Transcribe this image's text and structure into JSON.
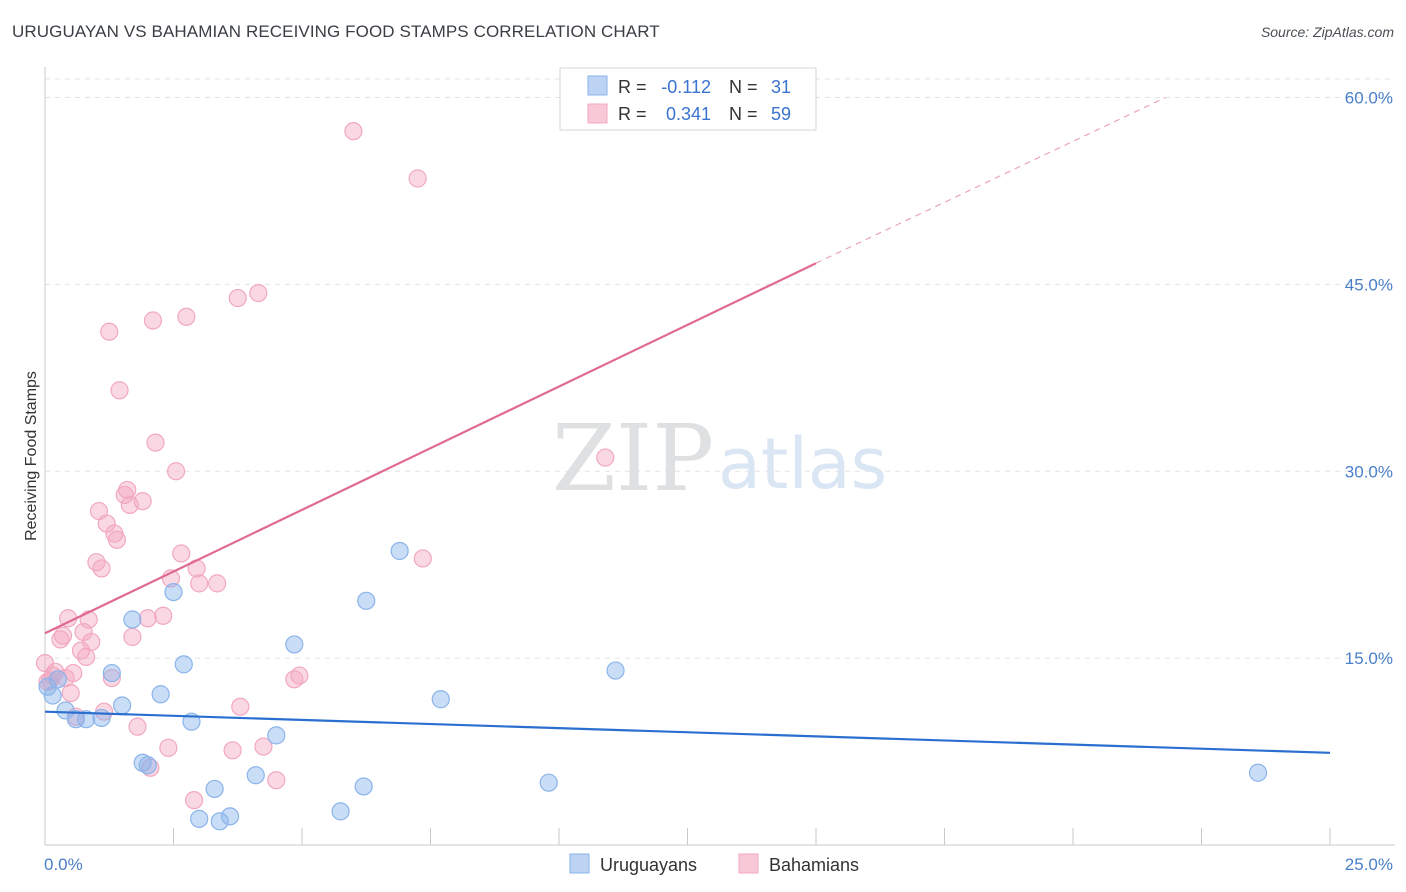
{
  "title": "URUGUAYAN VS BAHAMIAN RECEIVING FOOD STAMPS CORRELATION CHART",
  "source": "Source: ZipAtlas.com",
  "watermark": {
    "zip": "ZIP",
    "atlas": "atlas"
  },
  "legend": {
    "series": [
      {
        "r_label": "R =",
        "r_value": "-0.112",
        "n_label": "N =",
        "n_value": "31"
      },
      {
        "r_label": "R =",
        "r_value": "0.341",
        "n_label": "N =",
        "n_value": "59"
      }
    ]
  },
  "bottom_legend": [
    "Uruguayans",
    "Bahamians"
  ],
  "chart_data": {
    "type": "scatter",
    "title": "URUGUAYAN VS BAHAMIAN RECEIVING FOOD STAMPS CORRELATION CHART",
    "xlabel": "",
    "ylabel": "Receiving Food Stamps",
    "xlim": [
      0,
      25
    ],
    "ylim": [
      0,
      62
    ],
    "x_tick_labels": [
      "0.0%",
      "25.0%"
    ],
    "y_ticks": [
      15,
      30,
      45,
      60
    ],
    "y_tick_labels": [
      "15.0%",
      "30.0%",
      "45.0%",
      "60.0%"
    ],
    "colors": {
      "uruguayans": "#8ab4ea",
      "bahamians": "#f2a8c0",
      "uru_line": "#2a6fd0",
      "bah_line": "#e06a93"
    },
    "series": [
      {
        "name": "Uruguayans",
        "r": -0.112,
        "n": 31,
        "trend": {
          "x0": 0,
          "y0": 10.7,
          "x1": 25,
          "y1": 7.4
        },
        "points": [
          [
            0.05,
            12.7
          ],
          [
            0.15,
            12.0
          ],
          [
            0.25,
            13.3
          ],
          [
            0.4,
            10.8
          ],
          [
            0.6,
            10.1
          ],
          [
            0.8,
            10.1
          ],
          [
            1.1,
            10.2
          ],
          [
            1.3,
            13.8
          ],
          [
            1.5,
            11.2
          ],
          [
            1.7,
            18.1
          ],
          [
            1.9,
            6.6
          ],
          [
            2.0,
            6.4
          ],
          [
            2.25,
            12.1
          ],
          [
            2.5,
            20.3
          ],
          [
            2.7,
            14.5
          ],
          [
            2.85,
            9.9
          ],
          [
            3.0,
            2.1
          ],
          [
            3.3,
            4.5
          ],
          [
            3.4,
            1.9
          ],
          [
            3.6,
            2.3
          ],
          [
            4.1,
            5.6
          ],
          [
            4.5,
            8.8
          ],
          [
            4.85,
            16.1
          ],
          [
            5.75,
            2.7
          ],
          [
            6.2,
            4.7
          ],
          [
            6.25,
            19.6
          ],
          [
            6.9,
            23.6
          ],
          [
            7.7,
            11.7
          ],
          [
            9.8,
            5.0
          ],
          [
            11.1,
            14.0
          ],
          [
            23.6,
            5.8
          ]
        ]
      },
      {
        "name": "Bahamians",
        "r": 0.341,
        "n": 59,
        "trend": {
          "x0": 0,
          "y0": 17.0,
          "x1": 15,
          "y1": 46.7,
          "dash_x1": 21.8,
          "dash_y1": 60.0
        },
        "points": [
          [
            0.0,
            14.6
          ],
          [
            0.1,
            13.2
          ],
          [
            0.15,
            13.6
          ],
          [
            0.3,
            16.5
          ],
          [
            0.35,
            16.8
          ],
          [
            0.4,
            13.4
          ],
          [
            0.45,
            18.2
          ],
          [
            0.5,
            12.2
          ],
          [
            0.55,
            13.8
          ],
          [
            0.6,
            10.3
          ],
          [
            0.7,
            15.6
          ],
          [
            0.75,
            17.1
          ],
          [
            0.8,
            15.1
          ],
          [
            0.85,
            18.1
          ],
          [
            0.9,
            16.3
          ],
          [
            1.0,
            22.7
          ],
          [
            1.05,
            26.8
          ],
          [
            1.1,
            22.2
          ],
          [
            1.15,
            10.7
          ],
          [
            1.2,
            25.8
          ],
          [
            1.25,
            41.2
          ],
          [
            1.3,
            13.4
          ],
          [
            1.35,
            25.0
          ],
          [
            1.4,
            24.5
          ],
          [
            1.45,
            36.5
          ],
          [
            1.55,
            28.1
          ],
          [
            1.6,
            28.5
          ],
          [
            1.65,
            27.3
          ],
          [
            1.7,
            16.7
          ],
          [
            1.8,
            9.5
          ],
          [
            1.9,
            27.6
          ],
          [
            2.0,
            18.2
          ],
          [
            2.05,
            6.2
          ],
          [
            2.1,
            42.1
          ],
          [
            2.15,
            32.3
          ],
          [
            2.3,
            18.4
          ],
          [
            2.4,
            7.8
          ],
          [
            2.45,
            21.4
          ],
          [
            2.55,
            30.0
          ],
          [
            2.65,
            23.4
          ],
          [
            2.75,
            42.4
          ],
          [
            2.9,
            3.6
          ],
          [
            2.95,
            22.2
          ],
          [
            3.0,
            21.0
          ],
          [
            3.35,
            21.0
          ],
          [
            3.65,
            7.6
          ],
          [
            3.75,
            43.9
          ],
          [
            3.8,
            11.1
          ],
          [
            4.15,
            44.3
          ],
          [
            4.25,
            7.9
          ],
          [
            4.5,
            5.2
          ],
          [
            4.85,
            13.3
          ],
          [
            4.95,
            13.6
          ],
          [
            6.0,
            57.3
          ],
          [
            7.25,
            53.5
          ],
          [
            7.35,
            23.0
          ],
          [
            10.9,
            31.1
          ],
          [
            0.05,
            13.1
          ],
          [
            0.2,
            13.9
          ]
        ]
      }
    ]
  }
}
